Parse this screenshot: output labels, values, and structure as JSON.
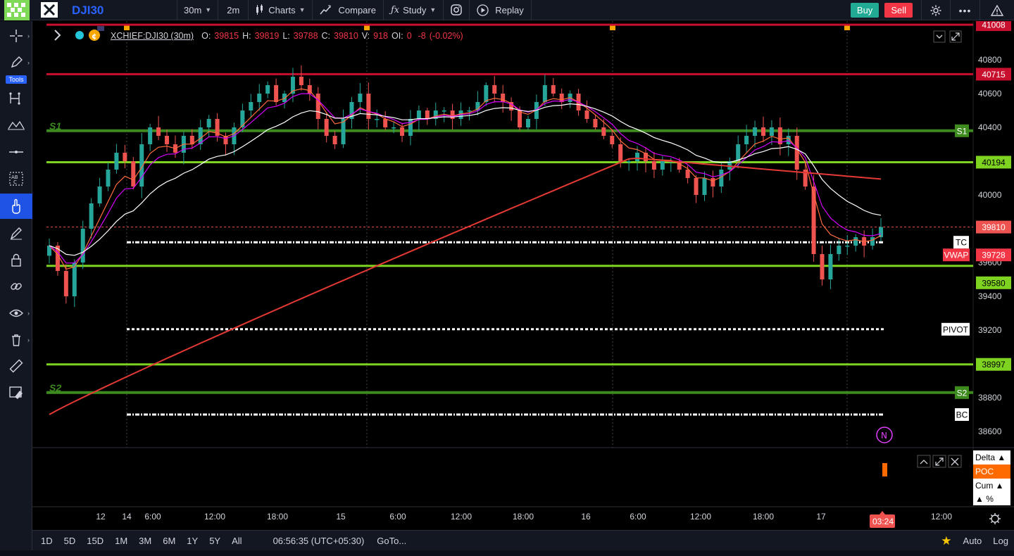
{
  "app": {
    "symbol": "DJI30",
    "toolbar": {
      "interval": "30m",
      "interval2": "2m",
      "charts_label": "Charts",
      "compare_label": "Compare",
      "study_label": "Study",
      "replay_label": "Replay",
      "buy_label": "Buy",
      "sell_label": "Sell"
    },
    "left_tools": {
      "tools_label": "Tools"
    },
    "legend": {
      "symbol": "XCHIEF:DJI30 (30m)",
      "open_label": "O:",
      "open": "39815",
      "high_label": "H:",
      "high": "39819",
      "low_label": "L:",
      "low": "39788",
      "close_label": "C:",
      "close": "39810",
      "volume_label": "V:",
      "volume": "918",
      "oi_label": "OI:",
      "oi": "0",
      "change": "-8",
      "change_pct": "(-0.02%)"
    },
    "bottom_bar": {
      "ranges": [
        "1D",
        "5D",
        "15D",
        "1M",
        "3M",
        "6M",
        "1Y",
        "5Y",
        "All"
      ],
      "time": "06:56:35 (UTC+05:30)",
      "goto_label": "GoTo...",
      "auto_label": "Auto",
      "log_label": "Log"
    },
    "sub_panel": {
      "delta_label": "Delta ▲",
      "poc_label": "POC",
      "cum_label": "Cum ▲",
      "pct_label": "▲ %"
    },
    "colors": {
      "bull": "#26a69a",
      "bear": "#ef5350",
      "pivot_green": "#7ed321",
      "s_green": "#3d8b1f",
      "resistance_red": "#c8102e",
      "accent": "#2962ff"
    }
  },
  "chart_data": {
    "type": "candlestick",
    "symbol": "XCHIEF:DJI30",
    "timeframe": "30m",
    "y_axis": {
      "min": 38520,
      "max": 41060,
      "ticks": [
        38600,
        38800,
        39000,
        39200,
        39400,
        39600,
        39800,
        40000,
        40200,
        40400,
        40600,
        40800,
        41000
      ]
    },
    "x_ticks": [
      "12",
      "14",
      "6:00",
      "12:00",
      "18:00",
      "15",
      "6:00",
      "12:00",
      "18:00",
      "16",
      "6:00",
      "12:00",
      "18:00",
      "17",
      "03:24",
      "12:00"
    ],
    "last_price": 39810,
    "horizontal_levels": [
      {
        "label": "41008",
        "value": 41008,
        "color": "#c8102e"
      },
      {
        "label": "40715",
        "value": 40715,
        "color": "#c8102e"
      },
      {
        "label": "S1",
        "value": 40380,
        "color": "#3d8b1f"
      },
      {
        "label": "40194",
        "value": 40194,
        "color": "#7ed321"
      },
      {
        "label": "TC",
        "value": 39720,
        "color": "#ffffff"
      },
      {
        "label": "VWAP",
        "value": 39728,
        "color": "#f23645"
      },
      {
        "label": "39580",
        "value": 39580,
        "color": "#7ed321"
      },
      {
        "label": "PIVOT",
        "value": 39205,
        "color": "#ffffff"
      },
      {
        "label": "38997",
        "value": 38997,
        "color": "#7ed321"
      },
      {
        "label": "S2",
        "value": 38830,
        "color": "#3d8b1f"
      },
      {
        "label": "BC",
        "value": 38700,
        "color": "#ffffff"
      }
    ],
    "closes": [
      39700,
      39550,
      39400,
      39600,
      39800,
      39950,
      40050,
      40150,
      40250,
      40200,
      40050,
      40300,
      40400,
      40350,
      40300,
      40250,
      40350,
      40300,
      40400,
      40450,
      40350,
      40300,
      40400,
      40500,
      40550,
      40600,
      40650,
      40550,
      40600,
      40700,
      40650,
      40600,
      40450,
      40350,
      40300,
      40450,
      40550,
      40600,
      40450,
      40450,
      40400,
      40400,
      40350,
      40450,
      40500,
      40450,
      40500,
      40500,
      40450,
      40500,
      40500,
      40550,
      40650,
      40600,
      40550,
      40500,
      40400,
      40450,
      40550,
      40650,
      40600,
      40550,
      40600,
      40500,
      40450,
      40400,
      40350,
      40300,
      40200,
      40200,
      40250,
      40200,
      40150,
      40200,
      40200,
      40150,
      40100,
      40000,
      40100,
      40050,
      40150,
      40200,
      40300,
      40350,
      40400,
      40350,
      40400,
      40300,
      40350,
      40150,
      40050,
      39650,
      39500,
      39650,
      39700,
      39700,
      39750,
      39700,
      39750,
      39810
    ]
  }
}
